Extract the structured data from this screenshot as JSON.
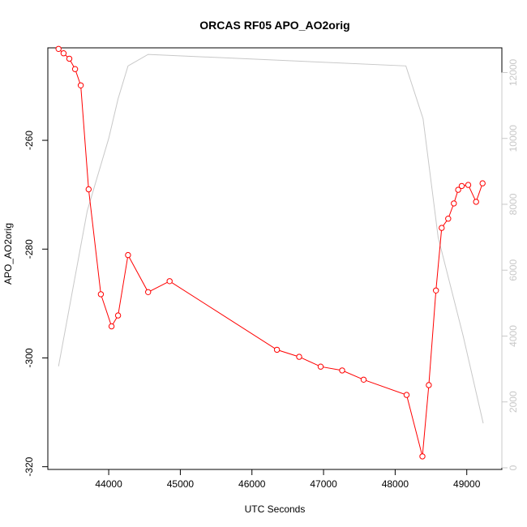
{
  "chart_data": {
    "type": "line",
    "title": "ORCAS RF05 APO_AO2orig",
    "xlabel": "UTC Seconds",
    "ylabel": "APO_AO2orig",
    "xlim": [
      43150,
      49490
    ],
    "ylim": [
      -320.5,
      -243
    ],
    "y2lim": [
      -50,
      12750
    ],
    "x_ticks": [
      44000,
      45000,
      46000,
      47000,
      48000,
      49000
    ],
    "y_ticks": [
      -320,
      -300,
      -280,
      -260
    ],
    "y2_ticks": [
      0,
      2000,
      4000,
      6000,
      8000,
      10000,
      12000
    ],
    "grid": false,
    "series": [
      {
        "name": "",
        "color": "#ff0000",
        "axis": "left",
        "marker": "open-circle",
        "x": [
          43300,
          43370,
          43450,
          43530,
          43610,
          43720,
          43890,
          44040,
          44130,
          44270,
          44550,
          44850,
          46350,
          46660,
          46960,
          47260,
          47560,
          48160,
          48380,
          48470,
          48570,
          48650,
          48740,
          48820,
          48880,
          48930,
          49020,
          49130,
          49220
        ],
        "y": [
          -243.2,
          -244,
          -245,
          -246.9,
          -249.9,
          -269,
          -288.3,
          -294.2,
          -292.2,
          -281.1,
          -287.9,
          -285.9,
          -298.5,
          -299.8,
          -301.6,
          -302.3,
          -304,
          -306.8,
          -318.1,
          -305,
          -287.6,
          -276.1,
          -274.4,
          -271.6,
          -269.1,
          -268.4,
          -268.2,
          -271.3,
          -267.9
        ]
      },
      {
        "name": "",
        "color": "#c8c8c8",
        "axis": "right",
        "marker": "none",
        "x": [
          43300,
          43700,
          44000,
          44130,
          44270,
          44550,
          48150,
          48390,
          48600,
          48950,
          49230
        ],
        "y": [
          3080,
          7800,
          10000,
          11200,
          12200,
          12550,
          12200,
          10600,
          7000,
          4000,
          1350
        ]
      }
    ]
  }
}
